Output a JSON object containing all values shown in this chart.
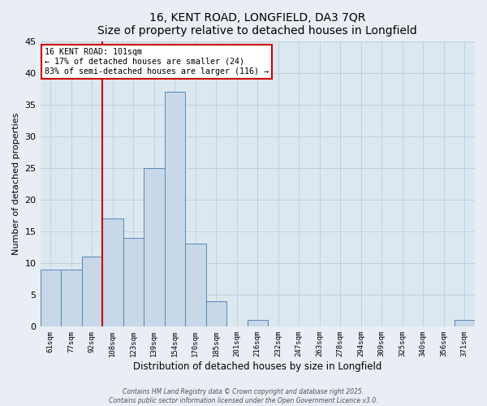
{
  "title": "16, KENT ROAD, LONGFIELD, DA3 7QR",
  "subtitle": "Size of property relative to detached houses in Longfield",
  "xlabel": "Distribution of detached houses by size in Longfield",
  "ylabel": "Number of detached properties",
  "bar_labels": [
    "61sqm",
    "77sqm",
    "92sqm",
    "108sqm",
    "123sqm",
    "139sqm",
    "154sqm",
    "170sqm",
    "185sqm",
    "201sqm",
    "216sqm",
    "232sqm",
    "247sqm",
    "263sqm",
    "278sqm",
    "294sqm",
    "309sqm",
    "325sqm",
    "340sqm",
    "356sqm",
    "371sqm"
  ],
  "bar_values": [
    9,
    9,
    11,
    17,
    14,
    25,
    37,
    13,
    4,
    0,
    1,
    0,
    0,
    0,
    0,
    0,
    0,
    0,
    0,
    0,
    1
  ],
  "bar_color": "#c8d8e8",
  "bar_edge_color": "#5588bb",
  "ylim": [
    0,
    45
  ],
  "yticks": [
    0,
    5,
    10,
    15,
    20,
    25,
    30,
    35,
    40,
    45
  ],
  "vline_x": 2.5,
  "vline_color": "#cc0000",
  "annotation_title": "16 KENT ROAD: 101sqm",
  "annotation_line1": "← 17% of detached houses are smaller (24)",
  "annotation_line2": "83% of semi-detached houses are larger (116) →",
  "annotation_box_facecolor": "#ffffff",
  "annotation_box_edgecolor": "#cc0000",
  "footer1": "Contains HM Land Registry data © Crown copyright and database right 2025.",
  "footer2": "Contains public sector information licensed under the Open Government Licence v3.0.",
  "background_color": "#e8eef4",
  "plot_bg_color": "#dce8f0",
  "grid_color": "#c0d0e0"
}
